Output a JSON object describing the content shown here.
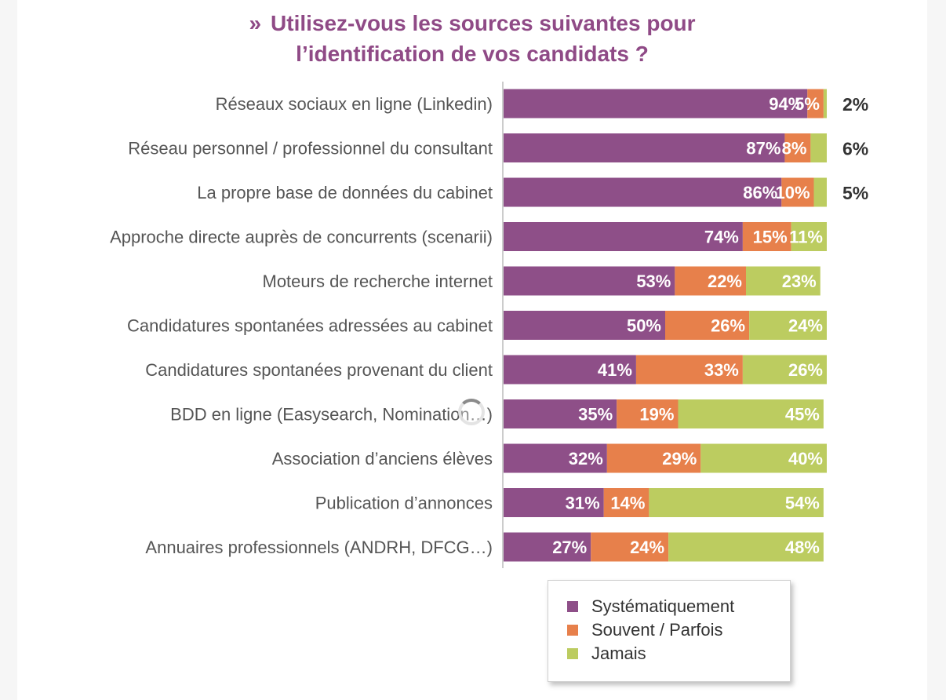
{
  "chart_data": {
    "type": "bar",
    "stacked": true,
    "orientation": "horizontal",
    "title_line1": "Utilisez-vous les sources suivantes pour",
    "title_line2": "l’identification de vos candidats ?",
    "categories": [
      "Réseaux sociaux en ligne (Linkedin)",
      "Réseau personnel / professionnel du consultant",
      "La propre base de données du cabinet",
      "Approche directe auprès de concurrents (scenarii)",
      "Moteurs de recherche internet",
      "Candidatures spontanées adressées au cabinet",
      "Candidatures spontanées provenant du client",
      "BDD en ligne (Easysearch, Nomination…)",
      "Association d’anciens élèves",
      "Publication d’annonces",
      "Annuaires professionnels (ANDRH, DFCG…)"
    ],
    "series": [
      {
        "name": "Systématiquement",
        "color": "#8e4f88",
        "values": [
          94,
          87,
          86,
          74,
          53,
          50,
          41,
          35,
          32,
          31,
          27
        ]
      },
      {
        "name": "Souvent / Parfois",
        "color": "#e7804b",
        "values": [
          5,
          8,
          10,
          15,
          22,
          26,
          33,
          19,
          29,
          14,
          24
        ]
      },
      {
        "name": "Jamais",
        "color": "#bccc60",
        "values": [
          2,
          6,
          5,
          11,
          23,
          24,
          26,
          45,
          40,
          54,
          48
        ]
      }
    ],
    "legend_position": "bottom-center",
    "value_suffix": "%"
  }
}
